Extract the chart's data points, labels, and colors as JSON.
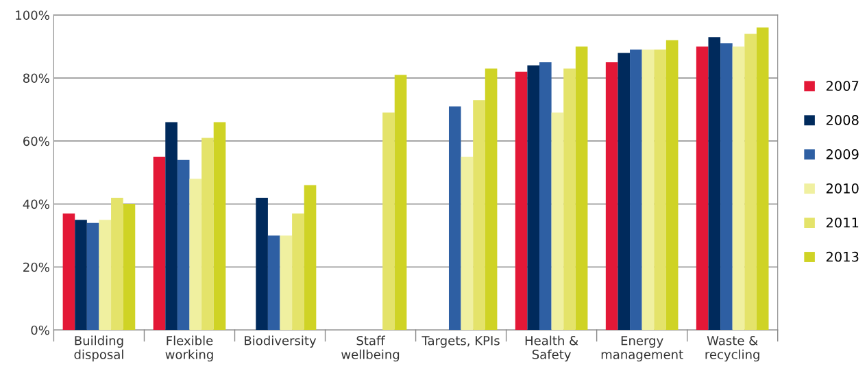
{
  "chart_data": {
    "type": "bar",
    "categories": [
      "Building\ndisposal",
      "Flexible\nworking",
      "Biodiversity",
      "Staff\nwellbeing",
      "Targets, KPIs",
      "Health &\nSafety",
      "Energy\nmanagement",
      "Waste &\nrecycling"
    ],
    "series": [
      {
        "name": "2007",
        "color": "#e31837",
        "values": [
          37,
          55,
          null,
          null,
          null,
          82,
          85,
          90
        ]
      },
      {
        "name": "2008",
        "color": "#002a5c",
        "values": [
          35,
          66,
          42,
          null,
          null,
          84,
          88,
          93
        ]
      },
      {
        "name": "2009",
        "color": "#2e5fa3",
        "values": [
          34,
          54,
          30,
          null,
          71,
          85,
          89,
          91
        ]
      },
      {
        "name": "2010",
        "color": "#f0f0a0",
        "values": [
          35,
          48,
          30,
          null,
          55,
          69,
          89,
          90
        ]
      },
      {
        "name": "2011",
        "color": "#e4e36a",
        "values": [
          42,
          61,
          37,
          69,
          73,
          83,
          89,
          94
        ]
      },
      {
        "name": "2013",
        "color": "#cfd325",
        "values": [
          40,
          66,
          46,
          81,
          83,
          90,
          92,
          96
        ]
      }
    ],
    "ylim": [
      0,
      100
    ],
    "yticks": [
      {
        "value": 0,
        "label": "0%"
      },
      {
        "value": 20,
        "label": "20%"
      },
      {
        "value": 40,
        "label": "40%"
      },
      {
        "value": 60,
        "label": "60%"
      },
      {
        "value": 80,
        "label": "80%"
      },
      {
        "value": 100,
        "label": "100%"
      }
    ],
    "grid": "y",
    "legend": "right"
  }
}
